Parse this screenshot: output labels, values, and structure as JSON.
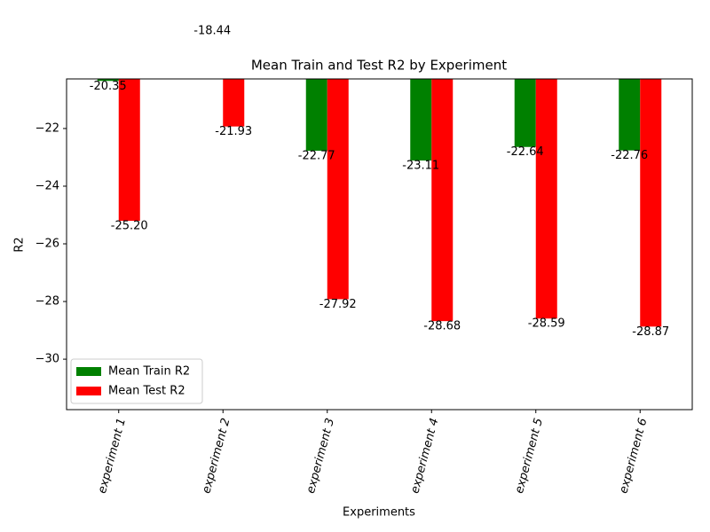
{
  "chart_data": {
    "type": "bar",
    "title": "Mean Train and Test R2 by Experiment",
    "x_label": "Experiments",
    "y_label": "R2",
    "categories": [
      "experiment 1",
      "experiment 2",
      "experiment 3",
      "experiment 4",
      "experiment 5",
      "experiment 6"
    ],
    "series": [
      {
        "name": "Mean Train R2",
        "color": "#008000",
        "values": [
          -20.35,
          -18.44,
          -22.77,
          -23.11,
          -22.64,
          -22.76
        ],
        "value_labels": [
          "-20.35",
          "-18.44",
          "-22.77",
          "-23.11",
          "-22.64",
          "-22.76"
        ]
      },
      {
        "name": "Mean Test R2",
        "color": "#ff0000",
        "values": [
          -25.2,
          -21.93,
          -27.92,
          -28.68,
          -28.59,
          -28.87
        ],
        "value_labels": [
          "-25.20",
          "-21.93",
          "-27.92",
          "-28.68",
          "-28.59",
          "-28.87"
        ]
      }
    ],
    "ylim": [
      -31.75,
      -20.28
    ],
    "yticks": [
      {
        "value": -30,
        "label": "−30"
      },
      {
        "value": -28,
        "label": "−28"
      },
      {
        "value": -26,
        "label": "−26"
      },
      {
        "value": -24,
        "label": "−24"
      },
      {
        "value": -22,
        "label": "−22"
      }
    ],
    "legend": "lower left",
    "grid": false
  }
}
